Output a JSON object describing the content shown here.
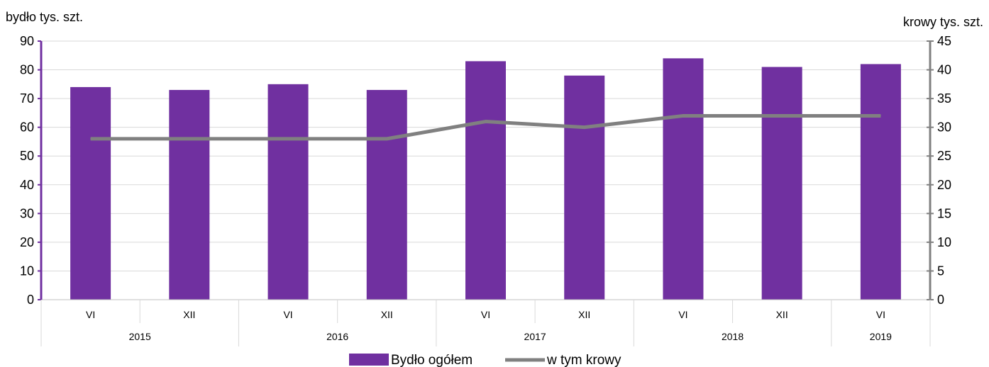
{
  "chart_data": {
    "type": "bar",
    "categories": [
      "VI",
      "XII",
      "VI",
      "XII",
      "VI",
      "XII",
      "VI",
      "XII",
      "VI"
    ],
    "groups": [
      {
        "label": "2015",
        "span": 2
      },
      {
        "label": "2016",
        "span": 2
      },
      {
        "label": "2017",
        "span": 2
      },
      {
        "label": "2018",
        "span": 2
      },
      {
        "label": "2019",
        "span": 1
      }
    ],
    "series": [
      {
        "name": "Bydło ogółem",
        "type": "bar",
        "axis": "left",
        "color": "#7030a0",
        "values": [
          74,
          73,
          75,
          73,
          83,
          78,
          84,
          81,
          82
        ]
      },
      {
        "name": "w tym krowy",
        "type": "line",
        "axis": "right",
        "color": "#808080",
        "values": [
          28,
          28,
          28,
          28,
          31,
          30,
          32,
          32,
          32
        ]
      }
    ],
    "ylabel_left": "bydło tys. szt.",
    "ylabel_right": "krowy tys. szt.",
    "ylim_left": [
      0,
      90
    ],
    "yticks_left": [
      0,
      10,
      20,
      30,
      40,
      50,
      60,
      70,
      80,
      90
    ],
    "ylim_right": [
      0,
      45
    ],
    "yticks_right": [
      0,
      5,
      10,
      15,
      20,
      25,
      30,
      35,
      40,
      45
    ],
    "grid": true,
    "legend_position": "bottom-center"
  }
}
